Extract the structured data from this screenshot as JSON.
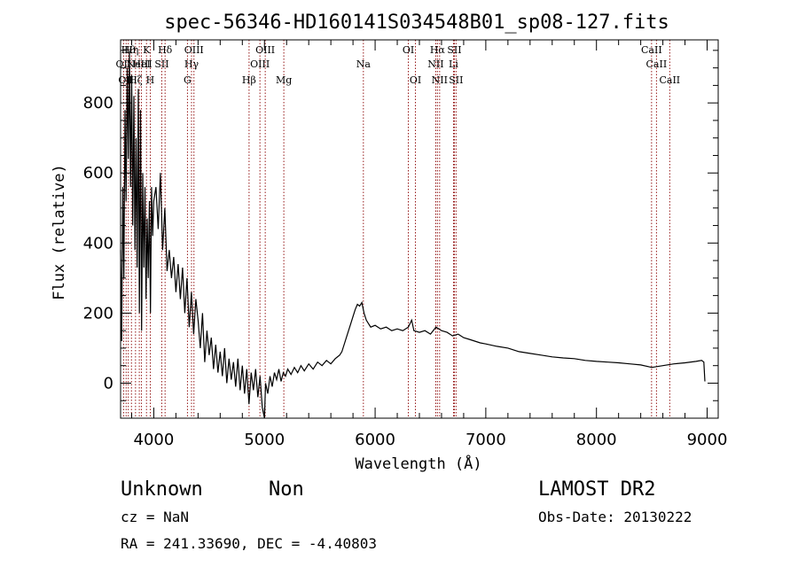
{
  "chart_data": {
    "type": "line",
    "title": "spec-56346-HD160141S034548B01_sp08-127.fits",
    "xlabel": "Wavelength (Å)",
    "ylabel": "Flux (relative)",
    "xlim": [
      3700,
      9100
    ],
    "ylim": [
      -100,
      980
    ],
    "x_ticks": [
      4000,
      5000,
      6000,
      7000,
      8000,
      9000
    ],
    "y_ticks": [
      0,
      200,
      400,
      600,
      800
    ],
    "grid": false,
    "series": [
      {
        "color": "#000000",
        "points": [
          [
            3700,
            380
          ],
          [
            3710,
            120
          ],
          [
            3720,
            560
          ],
          [
            3730,
            300
          ],
          [
            3740,
            780
          ],
          [
            3750,
            520
          ],
          [
            3760,
            900
          ],
          [
            3770,
            640
          ],
          [
            3780,
            950
          ],
          [
            3790,
            560
          ],
          [
            3800,
            880
          ],
          [
            3810,
            450
          ],
          [
            3820,
            820
          ],
          [
            3830,
            380
          ],
          [
            3840,
            700
          ],
          [
            3850,
            330
          ],
          [
            3860,
            840
          ],
          [
            3870,
            200
          ],
          [
            3880,
            780
          ],
          [
            3890,
            150
          ],
          [
            3900,
            600
          ],
          [
            3910,
            330
          ],
          [
            3920,
            560
          ],
          [
            3930,
            240
          ],
          [
            3940,
            470
          ],
          [
            3950,
            300
          ],
          [
            3960,
            520
          ],
          [
            3970,
            200
          ],
          [
            3980,
            560
          ],
          [
            3990,
            420
          ],
          [
            4000,
            520
          ],
          [
            4020,
            560
          ],
          [
            4040,
            440
          ],
          [
            4060,
            600
          ],
          [
            4080,
            380
          ],
          [
            4100,
            500
          ],
          [
            4120,
            320
          ],
          [
            4140,
            380
          ],
          [
            4160,
            300
          ],
          [
            4180,
            360
          ],
          [
            4200,
            260
          ],
          [
            4220,
            340
          ],
          [
            4240,
            240
          ],
          [
            4260,
            330
          ],
          [
            4280,
            200
          ],
          [
            4300,
            300
          ],
          [
            4320,
            160
          ],
          [
            4340,
            260
          ],
          [
            4360,
            140
          ],
          [
            4380,
            240
          ],
          [
            4400,
            180
          ],
          [
            4420,
            100
          ],
          [
            4440,
            200
          ],
          [
            4460,
            60
          ],
          [
            4480,
            150
          ],
          [
            4500,
            80
          ],
          [
            4520,
            130
          ],
          [
            4540,
            40
          ],
          [
            4560,
            110
          ],
          [
            4580,
            30
          ],
          [
            4600,
            90
          ],
          [
            4620,
            20
          ],
          [
            4640,
            100
          ],
          [
            4660,
            0
          ],
          [
            4680,
            70
          ],
          [
            4700,
            10
          ],
          [
            4720,
            60
          ],
          [
            4740,
            -10
          ],
          [
            4760,
            70
          ],
          [
            4780,
            -20
          ],
          [
            4800,
            50
          ],
          [
            4820,
            -30
          ],
          [
            4840,
            40
          ],
          [
            4860,
            -60
          ],
          [
            4880,
            30
          ],
          [
            4900,
            -20
          ],
          [
            4920,
            40
          ],
          [
            4940,
            -40
          ],
          [
            4960,
            20
          ],
          [
            4980,
            -70
          ],
          [
            5000,
            -100
          ],
          [
            5010,
            0
          ],
          [
            5030,
            -30
          ],
          [
            5050,
            20
          ],
          [
            5070,
            -10
          ],
          [
            5090,
            30
          ],
          [
            5110,
            10
          ],
          [
            5130,
            40
          ],
          [
            5150,
            5
          ],
          [
            5170,
            30
          ],
          [
            5190,
            20
          ],
          [
            5210,
            40
          ],
          [
            5240,
            25
          ],
          [
            5270,
            45
          ],
          [
            5300,
            30
          ],
          [
            5330,
            50
          ],
          [
            5360,
            35
          ],
          [
            5400,
            55
          ],
          [
            5440,
            40
          ],
          [
            5480,
            60
          ],
          [
            5520,
            50
          ],
          [
            5560,
            65
          ],
          [
            5600,
            55
          ],
          [
            5640,
            70
          ],
          [
            5680,
            80
          ],
          [
            5700,
            90
          ],
          [
            5720,
            110
          ],
          [
            5740,
            130
          ],
          [
            5760,
            150
          ],
          [
            5780,
            170
          ],
          [
            5800,
            190
          ],
          [
            5820,
            210
          ],
          [
            5840,
            225
          ],
          [
            5860,
            220
          ],
          [
            5880,
            230
          ],
          [
            5900,
            200
          ],
          [
            5920,
            180
          ],
          [
            5940,
            170
          ],
          [
            5960,
            160
          ],
          [
            6000,
            165
          ],
          [
            6050,
            155
          ],
          [
            6100,
            160
          ],
          [
            6150,
            150
          ],
          [
            6200,
            155
          ],
          [
            6250,
            150
          ],
          [
            6300,
            160
          ],
          [
            6330,
            180
          ],
          [
            6350,
            150
          ],
          [
            6400,
            145
          ],
          [
            6450,
            150
          ],
          [
            6500,
            140
          ],
          [
            6550,
            160
          ],
          [
            6600,
            150
          ],
          [
            6650,
            145
          ],
          [
            6700,
            135
          ],
          [
            6750,
            140
          ],
          [
            6800,
            130
          ],
          [
            6850,
            125
          ],
          [
            6900,
            120
          ],
          [
            6950,
            115
          ],
          [
            7000,
            112
          ],
          [
            7100,
            105
          ],
          [
            7200,
            100
          ],
          [
            7300,
            90
          ],
          [
            7400,
            85
          ],
          [
            7500,
            80
          ],
          [
            7600,
            75
          ],
          [
            7700,
            72
          ],
          [
            7800,
            70
          ],
          [
            7900,
            65
          ],
          [
            8000,
            62
          ],
          [
            8100,
            60
          ],
          [
            8200,
            58
          ],
          [
            8300,
            55
          ],
          [
            8400,
            52
          ],
          [
            8500,
            45
          ],
          [
            8600,
            50
          ],
          [
            8700,
            55
          ],
          [
            8800,
            58
          ],
          [
            8900,
            62
          ],
          [
            8950,
            65
          ],
          [
            8970,
            60
          ],
          [
            8980,
            5
          ]
        ]
      }
    ],
    "lines": [
      {
        "x": 3727,
        "label": "OII",
        "row": 1
      },
      {
        "x": 3750,
        "label": "OII",
        "row": 2
      },
      {
        "x": 3770,
        "label": "Hθ",
        "row": 0
      },
      {
        "x": 3798,
        "label": "Hη",
        "row": 0
      },
      {
        "x": 3835,
        "label": "Hζ",
        "row": 2
      },
      {
        "x": 3869,
        "label": "NeIII",
        "row": 1
      },
      {
        "x": 3889,
        "label": "HeI",
        "row": 1
      },
      {
        "x": 3934,
        "label": "K",
        "row": 0
      },
      {
        "x": 3968,
        "label": "H",
        "row": 2
      },
      {
        "x": 4072,
        "label": "SII",
        "row": 1
      },
      {
        "x": 4102,
        "label": "Hδ",
        "row": 0
      },
      {
        "x": 4304,
        "label": "G",
        "row": 2
      },
      {
        "x": 4341,
        "label": "Hγ",
        "row": 1
      },
      {
        "x": 4363,
        "label": "OIII",
        "row": 0
      },
      {
        "x": 4861,
        "label": "Hβ",
        "row": 2
      },
      {
        "x": 4959,
        "label": "OIII",
        "row": 1
      },
      {
        "x": 5007,
        "label": "OIII",
        "row": 0
      },
      {
        "x": 5175,
        "label": "Mg",
        "row": 2
      },
      {
        "x": 5894,
        "label": "Na",
        "row": 1
      },
      {
        "x": 6300,
        "label": "OI",
        "row": 0
      },
      {
        "x": 6364,
        "label": "OI",
        "row": 2
      },
      {
        "x": 6548,
        "label": "NII",
        "row": 1
      },
      {
        "x": 6563,
        "label": "Hα",
        "row": 0
      },
      {
        "x": 6583,
        "label": "NII",
        "row": 2
      },
      {
        "x": 6708,
        "label": "Li",
        "row": 1
      },
      {
        "x": 6716,
        "label": "SII",
        "row": 0
      },
      {
        "x": 6731,
        "label": "SII",
        "row": 2
      },
      {
        "x": 8498,
        "label": "CaII",
        "row": 0
      },
      {
        "x": 8542,
        "label": "CaII",
        "row": 1
      },
      {
        "x": 8662,
        "label": "CaII",
        "row": 2
      }
    ],
    "line_color": "#8b0000"
  },
  "footer": {
    "class_label": "Unknown",
    "subclass_label": "Non",
    "survey": "LAMOST DR2",
    "cz": "cz = NaN",
    "obs_date": "Obs-Date: 20130222",
    "coords": "RA = 241.33690, DEC =  -4.40803"
  }
}
